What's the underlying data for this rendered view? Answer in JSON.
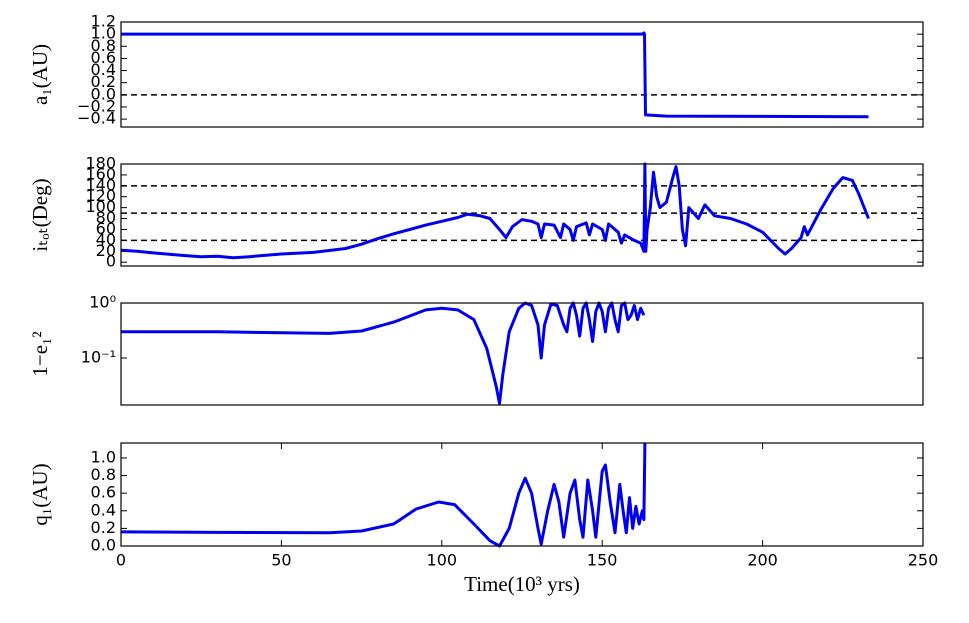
{
  "chart_data": [
    {
      "type": "line",
      "ylabel": "a₁(AU)",
      "xlim": [
        0,
        250
      ],
      "ylim": [
        -0.53,
        1.2
      ],
      "yticks": [
        1.2,
        {
          "value": 1.0,
          "label": "1.0"
        },
        0.8,
        0.6,
        0.4,
        0.2,
        {
          "value": 0,
          "label": "0.0"
        },
        {
          "value": -0.2,
          "label": "−0.2"
        },
        {
          "value": -0.4,
          "label": "−0.4"
        }
      ],
      "reference_lines": [
        0
      ],
      "x": [
        0,
        162.5,
        163,
        163.2,
        163.5,
        170,
        233
      ],
      "series": [
        {
          "color": "#0000ee",
          "values": [
            1,
            1,
            1.02,
            1,
            -0.33,
            -0.35,
            -0.36
          ]
        }
      ]
    },
    {
      "type": "line",
      "ylabel": "iₜₒₜ(Deg)",
      "xlim": [
        0,
        250
      ],
      "ylim": [
        -7,
        180
      ],
      "yticks": [
        0,
        20,
        40,
        60,
        80,
        100,
        120,
        140,
        160,
        180
      ],
      "reference_lines": [
        40,
        90,
        140
      ],
      "x": [
        0,
        5,
        10,
        20,
        25,
        30,
        35,
        40,
        50,
        60,
        70,
        75,
        80,
        85,
        90,
        95,
        100,
        105,
        108,
        112,
        115,
        118,
        120,
        122,
        125,
        128,
        130,
        131,
        132,
        135,
        137,
        138,
        140,
        141,
        142,
        145,
        146,
        147,
        150,
        151,
        152,
        155,
        156,
        157,
        160,
        162,
        163,
        163.3,
        163.6,
        164,
        165,
        166,
        167,
        168,
        170,
        172,
        173,
        174,
        175,
        176,
        177,
        180,
        182,
        185,
        190,
        195,
        200,
        205,
        207,
        209,
        212,
        213,
        214,
        218,
        222,
        225,
        228,
        230,
        233
      ],
      "series": [
        {
          "color": "#0000ee",
          "values": [
            22,
            20,
            17,
            12,
            10,
            11,
            8,
            10,
            15,
            18,
            25,
            33,
            43,
            52,
            60,
            68,
            75,
            82,
            88,
            85,
            80,
            60,
            45,
            65,
            78,
            75,
            70,
            45,
            70,
            68,
            45,
            70,
            60,
            40,
            65,
            72,
            50,
            70,
            60,
            40,
            70,
            55,
            35,
            50,
            40,
            35,
            20,
            180,
            20,
            60,
            100,
            165,
            120,
            100,
            110,
            155,
            175,
            140,
            60,
            30,
            100,
            80,
            105,
            85,
            80,
            70,
            55,
            25,
            15,
            25,
            45,
            65,
            50,
            95,
            135,
            155,
            150,
            125,
            80
          ]
        }
      ]
    },
    {
      "type": "line",
      "ylabel": "1−e₁²",
      "yscale": "log",
      "xlim": [
        0,
        250
      ],
      "ylim": [
        0.014,
        1
      ],
      "yticks": [
        {
          "value": 0.1,
          "label": "10⁻¹"
        },
        {
          "value": 1,
          "label": "10⁰"
        }
      ],
      "x": [
        0,
        30,
        65,
        75,
        85,
        95,
        100,
        105,
        110,
        114,
        117,
        118,
        119,
        121,
        124,
        126,
        128,
        130,
        131,
        132,
        134,
        136,
        138,
        139,
        140,
        141,
        142,
        143,
        144,
        145,
        146,
        147,
        148,
        149,
        150,
        151,
        152,
        153,
        154,
        155,
        156,
        157,
        158,
        159,
        160,
        161,
        162,
        163
      ],
      "series": [
        {
          "color": "#0000ee",
          "values": [
            0.3,
            0.3,
            0.28,
            0.31,
            0.45,
            0.75,
            0.8,
            0.75,
            0.5,
            0.15,
            0.03,
            0.015,
            0.05,
            0.3,
            0.8,
            1,
            0.9,
            0.4,
            0.1,
            0.4,
            0.95,
            0.9,
            0.4,
            0.3,
            0.8,
            1,
            0.6,
            0.25,
            0.8,
            1,
            0.5,
            0.2,
            0.7,
            1,
            0.7,
            0.3,
            0.8,
            1,
            0.5,
            0.3,
            0.9,
            1,
            0.5,
            0.6,
            0.9,
            0.5,
            0.8,
            0.6
          ]
        }
      ]
    },
    {
      "type": "line",
      "ylabel": "q₁(AU)",
      "xlabel": "Time(10³ yrs)",
      "xlim": [
        0,
        250
      ],
      "ylim": [
        0,
        1.17
      ],
      "xticks": [
        0,
        50,
        100,
        150,
        200,
        250
      ],
      "yticks": [
        {
          "value": 0,
          "label": "0.0"
        },
        0.2,
        0.4,
        0.6,
        0.8,
        {
          "value": 1.0,
          "label": "1.0"
        }
      ],
      "x": [
        0,
        30,
        65,
        75,
        85,
        92,
        99,
        104,
        110,
        115,
        118,
        121,
        124,
        126,
        128,
        130,
        131,
        133,
        135,
        136.5,
        138,
        140,
        141.5,
        143,
        144,
        145.5,
        147,
        148,
        150,
        151,
        152.5,
        154,
        155.5,
        156.5,
        157.5,
        158.5,
        159.5,
        160.5,
        161.5,
        162.5,
        163,
        163.3
      ],
      "series": [
        {
          "color": "#0000ee",
          "values": [
            0.16,
            0.155,
            0.15,
            0.17,
            0.25,
            0.42,
            0.5,
            0.47,
            0.25,
            0.06,
            0,
            0.2,
            0.6,
            0.77,
            0.6,
            0.2,
            0.02,
            0.4,
            0.7,
            0.5,
            0.1,
            0.6,
            0.75,
            0.3,
            0.1,
            0.75,
            0.4,
            0.1,
            0.85,
            0.92,
            0.5,
            0.15,
            0.7,
            0.4,
            0.15,
            0.55,
            0.2,
            0.45,
            0.25,
            0.4,
            0.3,
            1.17
          ]
        }
      ]
    }
  ]
}
